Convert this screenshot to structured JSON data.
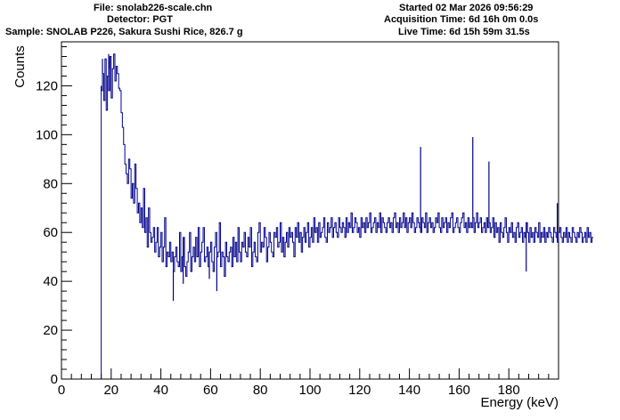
{
  "header": {
    "file": "File: snolab226-scale.chn",
    "detector": "Detector: PGT",
    "sample": "Sample: SNOLAB P226, Sakura Sushi Rice, 826.7 g",
    "started": "Started 02 Mar 2026 09:56:29",
    "acquisition": "Acquisition Time: 6d 16h 0m 0.0s",
    "live": "Live Time: 6d 15h 59m 31.5s"
  },
  "chart_data": {
    "type": "line",
    "style": "step-histogram",
    "title": "",
    "xlabel": "Energy (keV)",
    "ylabel": "Counts",
    "xlim": [
      0,
      200
    ],
    "ylim": [
      0,
      138
    ],
    "xticks": [
      0,
      20,
      40,
      60,
      80,
      100,
      120,
      140,
      160,
      180
    ],
    "yticks": [
      0,
      20,
      40,
      60,
      80,
      100,
      120
    ],
    "grid": false,
    "line_color": "#00008b",
    "bin_width": 0.5,
    "series": [
      {
        "x_start": 16.0,
        "values": [
          118,
          125,
          114,
          131,
          110,
          124,
          118,
          132,
          115,
          127,
          133,
          122,
          128,
          125,
          119,
          118,
          109,
          103,
          96,
          88,
          84,
          80,
          90,
          86,
          74,
          80,
          72,
          88,
          78,
          68,
          72,
          64,
          70,
          62,
          78,
          60,
          66,
          54,
          70,
          60,
          56,
          58,
          62,
          52,
          56,
          62,
          50,
          54,
          60,
          48,
          54,
          66,
          46,
          52,
          50,
          56,
          48,
          52,
          44,
          50,
          54,
          48,
          46,
          60,
          44,
          50,
          58,
          46,
          42,
          48,
          52,
          60,
          44,
          50,
          54,
          48,
          58,
          50,
          62,
          46,
          52,
          56,
          62,
          48,
          50,
          54,
          46,
          52,
          56,
          48,
          44,
          54,
          60,
          50,
          52,
          64,
          46,
          52,
          50,
          42,
          56,
          50,
          48,
          52,
          54,
          46,
          58,
          50,
          56,
          48,
          62,
          52,
          48,
          56,
          54,
          60,
          52,
          50,
          58,
          54,
          62,
          46,
          52,
          56,
          50,
          48,
          60,
          64,
          52,
          56,
          54,
          62,
          58,
          48,
          54,
          60,
          56,
          52,
          50,
          60,
          58,
          62,
          54,
          56,
          64,
          52,
          58,
          50,
          56,
          60,
          54,
          62,
          58,
          60,
          56,
          50,
          62,
          58,
          64,
          56,
          60,
          52,
          58,
          62,
          56,
          60,
          64,
          54,
          58,
          62,
          56,
          66,
          60,
          62,
          56,
          64,
          58,
          60,
          62,
          66,
          58,
          56,
          64,
          60,
          62,
          66,
          58,
          62,
          64,
          60,
          58,
          66,
          62,
          60,
          64,
          62,
          58,
          66,
          60,
          64,
          62,
          68,
          60,
          62,
          66,
          64,
          60,
          62,
          58,
          66,
          62,
          64,
          60,
          66,
          62,
          64,
          68,
          60,
          62,
          64,
          66,
          60,
          64,
          62,
          68,
          60,
          66,
          64,
          62,
          60,
          64,
          66,
          62,
          64,
          60,
          66,
          68,
          62,
          64,
          60,
          66,
          62,
          64,
          68,
          62,
          66,
          60,
          64,
          66,
          62,
          68,
          64,
          60,
          62,
          66,
          64,
          62,
          60,
          66,
          64,
          62,
          68,
          60,
          64,
          66,
          62,
          64,
          60,
          62,
          66,
          64,
          68,
          62,
          60,
          66,
          62,
          64,
          66,
          60,
          64,
          62,
          66,
          68,
          60,
          62,
          64,
          66,
          62,
          60,
          64,
          66,
          68,
          62,
          64,
          60,
          66,
          62,
          64,
          62,
          66,
          60,
          64,
          68,
          62,
          64,
          66,
          60,
          62,
          64,
          60,
          66,
          62,
          64,
          60,
          62,
          66,
          58,
          64,
          60,
          62,
          56,
          64,
          60,
          58,
          62,
          66,
          60,
          56,
          62,
          60,
          64,
          58,
          60,
          56,
          62,
          64,
          58,
          60,
          62,
          56,
          60,
          58,
          64,
          60,
          56,
          62,
          58,
          60,
          56,
          62,
          60,
          58,
          64,
          56,
          60,
          58,
          62,
          56,
          60,
          58,
          62,
          60,
          58,
          56,
          62,
          60,
          58,
          56,
          60,
          62,
          58,
          56,
          60,
          58,
          62,
          56,
          60,
          58,
          56,
          62,
          60,
          58,
          56,
          60,
          58,
          62,
          60,
          56,
          58,
          60,
          56,
          62,
          58,
          60,
          56,
          58
        ]
      }
    ],
    "spikes": [
      {
        "x": 16.0,
        "y": 120
      },
      {
        "x": 16.5,
        "y": 131
      },
      {
        "x": 19.0,
        "y": 133
      },
      {
        "x": 19.5,
        "y": 127
      },
      {
        "x": 45.0,
        "y": 32
      },
      {
        "x": 49.0,
        "y": 39
      },
      {
        "x": 59.5,
        "y": 41
      },
      {
        "x": 62.5,
        "y": 36
      },
      {
        "x": 144.5,
        "y": 95
      },
      {
        "x": 165.5,
        "y": 99
      },
      {
        "x": 172.0,
        "y": 89
      },
      {
        "x": 187.0,
        "y": 44
      },
      {
        "x": 199.5,
        "y": 72
      }
    ]
  }
}
